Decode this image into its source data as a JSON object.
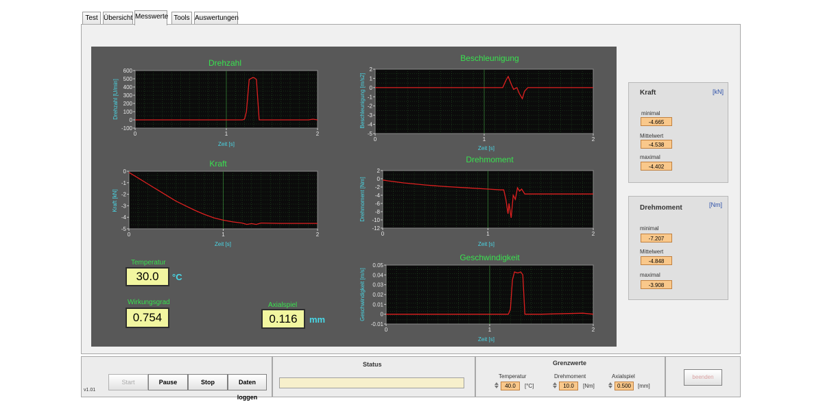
{
  "tabs": [
    {
      "label": "Test"
    },
    {
      "label": "Übersicht"
    },
    {
      "label": "Messwerte"
    },
    {
      "label": "Tools"
    },
    {
      "label": "Auswertungen"
    }
  ],
  "charts": {
    "drehzahl": {
      "title": "Drehzahl",
      "ylabel": "Drehzahl [U/min]",
      "xlabel": "Zeit [s]"
    },
    "kraft": {
      "title": "Kraft",
      "ylabel": "Kraft [kN]",
      "xlabel": "Zeit [s]"
    },
    "beschleunigung": {
      "title": "Beschleunigung",
      "ylabel": "Beschleunigung [m/s2]",
      "xlabel": "Zeit [s]"
    },
    "drehmoment": {
      "title": "Drehmoment",
      "ylabel": "Drehmoment [Nm]",
      "xlabel": "Zeit [s]"
    },
    "geschwindigkeit": {
      "title": "Geschwindigkeit",
      "ylabel": "Geschwindigkeit [m/s]",
      "xlabel": "Zeit [s]"
    }
  },
  "chart_data": [
    {
      "type": "line",
      "title": "Drehzahl",
      "xlabel": "Zeit [s]",
      "ylabel": "Drehzahl [U/min]",
      "xlim": [
        0,
        2
      ],
      "ylim": [
        -100,
        600
      ],
      "xticks": [
        "0",
        "1",
        "2"
      ],
      "yticks": [
        "-100",
        "0",
        "100",
        "200",
        "300",
        "400",
        "500",
        "600"
      ],
      "x": [
        0,
        0.4,
        0.8,
        1.18,
        1.2,
        1.22,
        1.25,
        1.29,
        1.31,
        1.33,
        1.36,
        1.6,
        1.9,
        1.95,
        2
      ],
      "y": [
        0,
        0,
        0,
        0,
        10,
        100,
        490,
        515,
        510,
        490,
        0,
        0,
        0,
        8,
        0
      ],
      "color": "#e02020"
    },
    {
      "type": "line",
      "title": "Kraft",
      "xlabel": "Zeit [s]",
      "ylabel": "Kraft [kN]",
      "xlim": [
        0,
        2
      ],
      "ylim": [
        -5,
        0
      ],
      "xticks": [
        "0",
        "1",
        "2"
      ],
      "yticks": [
        "0",
        "-1",
        "-2",
        "-3",
        "-4",
        "-5"
      ],
      "x": [
        0,
        0.1,
        0.2,
        0.3,
        0.4,
        0.5,
        0.6,
        0.7,
        0.8,
        0.9,
        1.0,
        1.1,
        1.2,
        1.25,
        1.3,
        1.35,
        1.4,
        1.6,
        1.8,
        2
      ],
      "y": [
        -0.1,
        -0.6,
        -1.1,
        -1.6,
        -2.1,
        -2.6,
        -3.0,
        -3.4,
        -3.75,
        -4.05,
        -4.25,
        -4.4,
        -4.5,
        -4.62,
        -4.55,
        -4.62,
        -4.5,
        -4.53,
        -4.53,
        -4.53
      ],
      "color": "#e02020"
    },
    {
      "type": "line",
      "title": "Beschleunigung",
      "xlabel": "Zeit [s]",
      "ylabel": "Beschleunigung [m/s2]",
      "xlim": [
        0,
        2
      ],
      "ylim": [
        -5,
        2
      ],
      "xticks": [
        "0",
        "1",
        "2"
      ],
      "yticks": [
        "2",
        "1",
        "0",
        "-1",
        "-2",
        "-3",
        "-4",
        "-5"
      ],
      "x": [
        0,
        0.5,
        1.0,
        1.17,
        1.2,
        1.22,
        1.25,
        1.27,
        1.3,
        1.32,
        1.35,
        1.37,
        1.4,
        1.5,
        2
      ],
      "y": [
        0,
        0,
        0,
        0,
        0.8,
        1.2,
        0.3,
        -0.2,
        0,
        -0.6,
        -1.2,
        -0.4,
        0,
        0,
        0
      ],
      "color": "#e02020"
    },
    {
      "type": "line",
      "title": "Drehmoment",
      "xlabel": "Zeit [s]",
      "ylabel": "Drehmoment [Nm]",
      "xlim": [
        0,
        2
      ],
      "ylim": [
        -12,
        2
      ],
      "xticks": [
        "0",
        "1",
        "2"
      ],
      "yticks": [
        "2",
        "0",
        "-2",
        "-4",
        "-6",
        "-8",
        "-10",
        "-12"
      ],
      "x": [
        0,
        0.05,
        0.2,
        0.4,
        0.6,
        0.8,
        1.0,
        1.12,
        1.15,
        1.17,
        1.19,
        1.2,
        1.22,
        1.24,
        1.26,
        1.28,
        1.3,
        1.32,
        1.35,
        1.5,
        1.7,
        2
      ],
      "y": [
        -0.3,
        -0.5,
        -1.0,
        -1.5,
        -1.9,
        -2.2,
        -2.5,
        -2.7,
        -2.7,
        -5,
        -8.5,
        -6,
        -9.5,
        -4,
        -5,
        -2.2,
        -3,
        -2.5,
        -3.7,
        -3.7,
        -3.7,
        -3.7
      ],
      "color": "#e02020"
    },
    {
      "type": "line",
      "title": "Geschwindigkeit",
      "xlabel": "Zeit [s]",
      "ylabel": "Geschwindigkeit [m/s]",
      "xlim": [
        0,
        2
      ],
      "ylim": [
        -0.01,
        0.05
      ],
      "xticks": [
        "0",
        "1",
        "2"
      ],
      "yticks": [
        "0.05",
        "0.04",
        "0.03",
        "0.02",
        "0.01",
        "0",
        "-0.01"
      ],
      "x": [
        0,
        0.5,
        1.0,
        1.18,
        1.2,
        1.22,
        1.24,
        1.27,
        1.3,
        1.32,
        1.34,
        1.5,
        1.9,
        2
      ],
      "y": [
        0,
        0,
        0,
        0,
        0.005,
        0.035,
        0.043,
        0.042,
        0.043,
        0.04,
        0,
        0,
        0.001,
        0
      ],
      "color": "#e02020"
    }
  ],
  "temperatur": {
    "label": "Temperatur",
    "value": "30.0",
    "unit": "°C"
  },
  "wirkungsgrad": {
    "label": "Wirkungsgrad",
    "value": "0.754"
  },
  "axialspiel": {
    "label": "Axialspiel",
    "value": "0.116",
    "unit": "mm"
  },
  "kraft_stats": {
    "title": "Kraft",
    "unit": "[kN]",
    "min_label": "minimal",
    "min": "-4.665",
    "mean_label": "Mittelwert",
    "mean": "-4.538",
    "max_label": "maximal",
    "max": "-4.402"
  },
  "drehmoment_stats": {
    "title": "Drehmoment",
    "unit": "[Nm]",
    "min_label": "minimal",
    "min": "-7.207",
    "mean_label": "Mittelwert",
    "mean": "-4.848",
    "max_label": "maximal",
    "max": "-3.908"
  },
  "controls": {
    "version": "v1.01",
    "start": "Start",
    "pause": "Pause",
    "stop": "Stop",
    "log": "Daten loggen"
  },
  "status": {
    "title": "Status",
    "value": ""
  },
  "grenzwerte": {
    "title": "Grenzwerte",
    "temp_label": "Temperatur",
    "temp_value": "40.0",
    "temp_unit": "[°C]",
    "moment_label": "Drehmoment",
    "moment_value": "10.0",
    "moment_unit": "[Nm]",
    "axial_label": "Axialspiel",
    "axial_value": "0.500",
    "axial_unit": "[mm]"
  },
  "beenden": "beenden",
  "colors": {
    "plot_bg": "#585858",
    "chart_bg": "#0b0b0b",
    "grid": "#2d6b2d",
    "title": "#39e24f",
    "axis_label": "#49d7e6",
    "trace": "#e02020",
    "value_box": "#f2f6a0",
    "stat_box": "#f9c88b"
  }
}
